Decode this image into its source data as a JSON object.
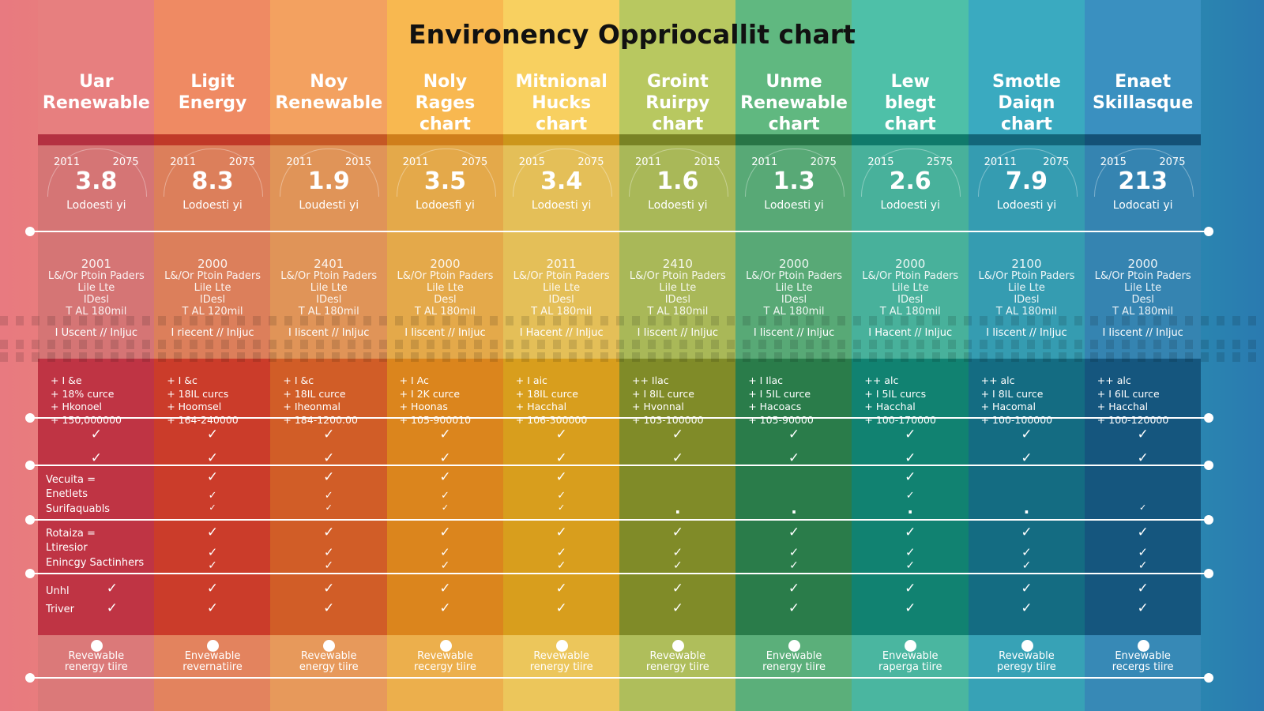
{
  "title": "Environency Oppriocallit chart",
  "chart_data": {
    "type": "table",
    "title": "Environency Oppriocallit chart",
    "columns": [
      {
        "header": [
          "Uar",
          "Renewable"
        ],
        "years": [
          "2011",
          "2075"
        ],
        "value": "3.8",
        "sublabel": "Lodoesti yi",
        "stats": [
          "2001",
          "L&/Or Ptoin Paders",
          "Lile  Lte",
          "IDesl",
          "T AL 180mil"
        ],
        "note": "I Uscent // Inljuc",
        "bullets": [
          "+ I &e",
          "+ 18% curce",
          "+ Hkonoel",
          "+ 150,000000"
        ],
        "footer": [
          "Revewable",
          "renergy tiire"
        ],
        "color": "#d43a4c",
        "top_color": "#e77f7f"
      },
      {
        "header": [
          "Ligit",
          "Energy"
        ],
        "years": [
          "2011",
          "2075"
        ],
        "value": "8.3",
        "sublabel": "Lodoesti yi",
        "stats": [
          "2000",
          "L&/Or Ptoin Paders",
          "Lile  Lte",
          "IDesl",
          "T AL 120mil"
        ],
        "note": "I riecent // Inljuc",
        "bullets": [
          "+ I &c",
          "+ 18IL curcs",
          "+ Hoomsel",
          "+ 164-240000"
        ],
        "footer": [
          "Envewable",
          "revernatiire"
        ],
        "color": "#e2432f",
        "top_color": "#ef8a63"
      },
      {
        "header": [
          "Noy",
          "Renewable"
        ],
        "years": [
          "2011",
          "2015"
        ],
        "value": "1.9",
        "sublabel": "Loudesti yi",
        "stats": [
          "2401",
          "L&/Or Ptoin Paders",
          "Lile  Lte",
          "IDesl",
          "T AL 180mil"
        ],
        "note": "I Iiscent // Inljuc",
        "bullets": [
          "+ I &c",
          "+ 18IL curce",
          "+ Iheonmal",
          "+ 184-1200.00"
        ],
        "footer": [
          "Revewable",
          "energy tiire"
        ],
        "color": "#e8672b",
        "top_color": "#f3a160"
      },
      {
        "header": [
          "Noly",
          "Rages",
          "chart"
        ],
        "years": [
          "2011",
          "2075"
        ],
        "value": "3.5",
        "sublabel": "Lodoesfi yi",
        "stats": [
          "2000",
          "L&/Or Ptoin Paders",
          "Lile  Lte",
          "Desl",
          "T AL 180mil"
        ],
        "note": "I Iiscent // Inljuc",
        "bullets": [
          "+ I Ac",
          "+ I 2K curce",
          "+ Hoonas",
          "+ 105-900010"
        ],
        "footer": [
          "Revewable",
          "recergy tiire"
        ],
        "color": "#f39420",
        "top_color": "#f8b850"
      },
      {
        "header": [
          "Mitnional",
          "Hucks",
          "chart"
        ],
        "years": [
          "2015",
          "2075"
        ],
        "value": "3.4",
        "sublabel": "Lodoesti yi",
        "stats": [
          "2011",
          "L&/Or Ptoin Paders",
          "Lile  Lte",
          "IDesl",
          "T AL 180mil"
        ],
        "note": "I Hacent // Inljuc",
        "bullets": [
          "+ I aic",
          "+ 18IL curce",
          "+ Hacchal",
          "+ 106-300000"
        ],
        "footer": [
          "Revewable",
          "renergy tiire"
        ],
        "color": "#f0b020",
        "top_color": "#f8d060"
      },
      {
        "header": [
          "Groint",
          "Ruirpy",
          "chart"
        ],
        "years": [
          "2011",
          "2015"
        ],
        "value": "1.6",
        "sublabel": "Lodoesti yi",
        "stats": [
          "2410",
          "L&/Or Ptoin Paders",
          "Lile  Lte",
          "IDesl",
          "T AL 180mil"
        ],
        "note": "I Iiscent // Inljuc",
        "bullets": [
          "++ Ilac",
          "+ I 8IL curce",
          "+ Hvonnal",
          "+ 103-100000"
        ],
        "footer": [
          "Revewable",
          "renergy tiire"
        ],
        "color": "#8e9a2c",
        "top_color": "#b8c860"
      },
      {
        "header": [
          "Unme",
          "Renewable",
          "chart"
        ],
        "years": [
          "2011",
          "2075"
        ],
        "value": "1.3",
        "sublabel": "Lodoesti yi",
        "stats": [
          "2000",
          "L&/Or Ptoin Paders",
          "Lile  Lte",
          "IDesl",
          "T AL 180mil"
        ],
        "note": "I Iiscent // Inljuc",
        "bullets": [
          "+ I Ilac",
          "+ I 5IL curce",
          "+ Hacoacs",
          "+ 105-90000"
        ],
        "footer": [
          "Envewable",
          "renergy tiire"
        ],
        "color": "#2f8a52",
        "top_color": "#60b880"
      },
      {
        "header": [
          "Lew",
          "blegt",
          "chart"
        ],
        "years": [
          "2015",
          "2575"
        ],
        "value": "2.6",
        "sublabel": "Lodoesti yi",
        "stats": [
          "2000",
          "L&/Or Ptoin Paders",
          "Lile  Lte",
          "IDesl",
          "T AL 180mil"
        ],
        "note": "I Hacent // Inljuc",
        "bullets": [
          "++ alc",
          "+ I 5IL curcs",
          "+ Hacchal",
          "+ 100-170000"
        ],
        "footer": [
          "Envewable",
          "raperga tiire"
        ],
        "color": "#13907e",
        "top_color": "#4ec0a8"
      },
      {
        "header": [
          "Smotle",
          "Daiqn",
          "chart"
        ],
        "years": [
          "20111",
          "2075"
        ],
        "value": "7.9",
        "sublabel": "Lodoesti yi",
        "stats": [
          "2100",
          "L&/Or Ptoin Paders",
          "Lile  Lte",
          "IDesl",
          "T AL 180mil"
        ],
        "note": "I Iiscent // Inljuc",
        "bullets": [
          "++ alc",
          "+ I 8IL curce",
          "+ Hacomal",
          "+ 100-100000"
        ],
        "footer": [
          "Revewable",
          "peregy tiire"
        ],
        "color": "#167890",
        "top_color": "#3aaac0"
      },
      {
        "header": [
          "Enaet",
          "Skillasque"
        ],
        "years": [
          "2015",
          "2075"
        ],
        "value": "213",
        "sublabel": "Lodocati yi",
        "stats": [
          "2000",
          "L&/Or Ptoin Paders",
          "Lile  Lte",
          "Desl",
          "T AL 180mil"
        ],
        "note": "I Iiscent // Inljuc",
        "bullets": [
          "++ alc",
          "+ I 6IL curce",
          "+ Hacchal",
          "+ 100-120000"
        ],
        "footer": [
          "Envewable",
          "recergs tiire"
        ],
        "color": "#175f8c",
        "top_color": "#3a90c0"
      }
    ],
    "row_labels": {
      "section_a": [
        "Vecuita =",
        "Enetlets",
        "Surifaquabls"
      ],
      "section_b": [
        "Rotaiza =",
        "Ltiresior",
        "Enincgy Sactinhers"
      ],
      "section_c": [
        "Unhl",
        "Triver"
      ]
    },
    "check_rows": [
      {
        "marks": [
          "check",
          "check",
          "check",
          "check",
          "check",
          "check",
          "check",
          "check",
          "check",
          "check"
        ]
      },
      {
        "marks": [
          "check",
          "check",
          "check",
          "check",
          "check",
          "check",
          "check",
          "check",
          "check",
          "check"
        ]
      },
      {
        "marks": [
          "",
          "check",
          "check",
          "check",
          "check",
          "",
          "",
          "check",
          "",
          ""
        ]
      },
      {
        "marks": [
          "",
          "check",
          "check",
          "check",
          "check",
          "",
          "",
          "check",
          "",
          ""
        ]
      },
      {
        "marks": [
          "",
          "check",
          "check",
          "check",
          "check",
          "dot",
          "dot",
          "dot",
          "dot",
          "check"
        ]
      },
      {
        "marks": [
          "",
          "check",
          "check",
          "check",
          "check",
          "check",
          "check",
          "check",
          "check",
          "check"
        ]
      },
      {
        "marks": [
          "",
          "check",
          "check",
          "check",
          "check",
          "check",
          "check",
          "check",
          "check",
          "check"
        ]
      },
      {
        "marks": [
          "",
          "check",
          "check",
          "check",
          "check",
          "check",
          "check",
          "check",
          "check",
          "check"
        ]
      },
      {
        "marks": [
          "check",
          "check",
          "check",
          "check",
          "check",
          "check",
          "check",
          "check",
          "check",
          "check"
        ]
      },
      {
        "marks": [
          "check",
          "check",
          "check",
          "check",
          "check",
          "check",
          "check",
          "check",
          "check",
          "check"
        ]
      }
    ],
    "check_symbol": "✓",
    "dot_symbol": "·"
  }
}
